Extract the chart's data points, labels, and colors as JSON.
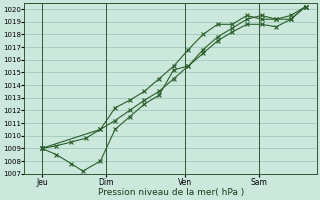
{
  "xlabel": "Pression niveau de la mer( hPa )",
  "bg_color": "#cce8dc",
  "grid_color": "#88bbaa",
  "line_color": "#2a5e2a",
  "ylim": [
    1007,
    1020.5
  ],
  "yticks": [
    1007,
    1008,
    1009,
    1010,
    1011,
    1012,
    1013,
    1014,
    1015,
    1016,
    1017,
    1018,
    1019,
    1020
  ],
  "xlim": [
    0.0,
    10.0
  ],
  "xtick_positions": [
    0.6,
    2.8,
    5.5,
    8.0
  ],
  "xtick_labels": [
    "Jeu",
    "Dim",
    "Ven",
    "Sam"
  ],
  "vlines": [
    0.6,
    2.8,
    5.5,
    8.0
  ],
  "series1_x": [
    0.6,
    1.1,
    1.6,
    2.1,
    2.6,
    3.1,
    3.6,
    4.1,
    4.6,
    5.1,
    5.6,
    6.1,
    6.6,
    7.1,
    7.6,
    8.1,
    8.6,
    9.1,
    9.6
  ],
  "series1_y": [
    1009.0,
    1009.2,
    1009.5,
    1009.8,
    1010.5,
    1011.2,
    1012.0,
    1012.8,
    1013.5,
    1014.5,
    1015.5,
    1016.5,
    1017.5,
    1018.2,
    1018.8,
    1018.8,
    1018.6,
    1019.2,
    1020.2
  ],
  "series2_x": [
    0.6,
    1.1,
    1.6,
    2.0,
    2.6,
    3.1,
    3.6,
    4.1,
    4.6,
    5.1,
    5.6,
    6.1,
    6.6,
    7.1,
    7.6,
    8.1,
    8.6,
    9.1,
    9.6
  ],
  "series2_y": [
    1009.0,
    1008.5,
    1007.8,
    1007.2,
    1008.0,
    1010.5,
    1011.5,
    1012.5,
    1013.2,
    1015.2,
    1015.5,
    1016.8,
    1017.8,
    1018.5,
    1019.2,
    1019.5,
    1019.2,
    1019.2,
    1020.2
  ],
  "series3_x": [
    0.6,
    2.6,
    3.1,
    3.6,
    4.1,
    4.6,
    5.1,
    5.6,
    6.1,
    6.6,
    7.1,
    7.6,
    8.1,
    8.6,
    9.1,
    9.6
  ],
  "series3_y": [
    1009.0,
    1010.5,
    1012.2,
    1012.8,
    1013.5,
    1014.5,
    1015.5,
    1016.8,
    1018.0,
    1018.8,
    1018.8,
    1019.5,
    1019.2,
    1019.2,
    1019.5,
    1020.2
  ]
}
